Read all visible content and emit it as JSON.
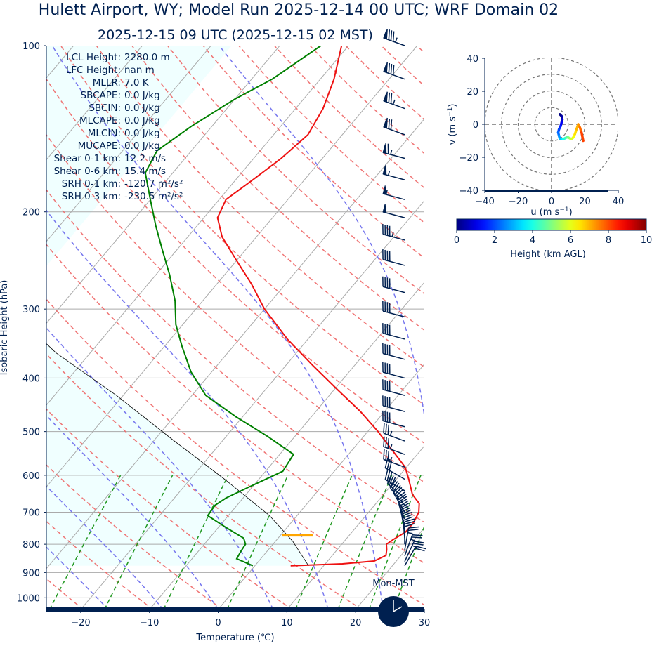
{
  "title": "Hulett Airport, WY; Model Run 2025-12-14 00 UTC; WRF Domain 02",
  "subtitle": "2025-12-15 09 UTC  (2025-12-15 02 MST)",
  "indices": [
    {
      "label": "LCL Height:",
      "value": "2280.0 m"
    },
    {
      "label": "LFC Height:",
      "value": "nan m"
    },
    {
      "label": "MLLR:",
      "value": "7.0 K"
    },
    {
      "label": "SBCAPE:",
      "value": "0.0 J/kg"
    },
    {
      "label": "SBCIN:",
      "value": "0.0 J/kg"
    },
    {
      "label": "MLCAPE:",
      "value": "0.0 J/kg"
    },
    {
      "label": "MLCIN:",
      "value": "0.0 J/kg"
    },
    {
      "label": "MUCAPE:",
      "value": "0.0 J/kg"
    },
    {
      "label": "Shear 0-1 km:",
      "value": "12.2 m/s"
    },
    {
      "label": "Shear 0-6 km:",
      "value": "15.4 m/s"
    },
    {
      "label": "SRH 0-1 km:",
      "value": "-120.7 m²/s²"
    },
    {
      "label": "SRH 0-3 km:",
      "value": "-230.5 m²/s²"
    }
  ],
  "clock_label": "Mon-MST",
  "colors": {
    "temperature": "#ee1111",
    "dewpoint": "#008000",
    "parcel": "#000000",
    "cape_fill": "#f0ffff",
    "dry_adiabat": "#ee6666",
    "moist_adiabat": "#7777ee",
    "mixing_ratio": "#229922",
    "isotherm": "#aaaaaa",
    "barb": "#002050",
    "lcl_marker": "#ffa500",
    "title": "#002050"
  },
  "chart_data": [
    {
      "type": "skew-t",
      "xlabel": "Temperature (℃)",
      "ylabel": "Isobaric Height (hPa)",
      "xlim": [
        -25,
        30
      ],
      "ylim": [
        1050,
        100
      ],
      "y_scale": "log",
      "x_ticks": [
        -20,
        -10,
        0,
        10,
        20,
        30
      ],
      "y_ticks": [
        100,
        200,
        300,
        400,
        500,
        600,
        700,
        800,
        900,
        1000
      ],
      "grid": true,
      "series": [
        {
          "name": "temperature",
          "points": [
            [
              5.2,
              875
            ],
            [
              12.5,
              868
            ],
            [
              16.8,
              858
            ],
            [
              17.8,
              838
            ],
            [
              17.2,
              818
            ],
            [
              16.5,
              800
            ],
            [
              16.9,
              785
            ],
            [
              17.8,
              760
            ],
            [
              17.8,
              730
            ],
            [
              17.3,
              700
            ],
            [
              16.3,
              675
            ],
            [
              14.2,
              650
            ],
            [
              11.8,
              610
            ],
            [
              9.8,
              580
            ],
            [
              5.8,
              540
            ],
            [
              1.5,
              500
            ],
            [
              -3.5,
              460
            ],
            [
              -9.5,
              420
            ],
            [
              -16,
              380
            ],
            [
              -23,
              340
            ],
            [
              -30,
              300
            ],
            [
              -35,
              270
            ],
            [
              -40,
              245
            ],
            [
              -45,
              222
            ],
            [
              -48,
              205
            ],
            [
              -49,
              190
            ],
            [
              -47.5,
              175
            ],
            [
              -46,
              160
            ],
            [
              -45,
              145
            ],
            [
              -46,
              130
            ],
            [
              -48,
              115
            ],
            [
              -51,
              100
            ]
          ]
        },
        {
          "name": "dewpoint",
          "points": [
            [
              -0.3,
              875
            ],
            [
              -3.5,
              850
            ],
            [
              -3.8,
              825
            ],
            [
              -4,
              800
            ],
            [
              -5,
              780
            ],
            [
              -9,
              745
            ],
            [
              -13,
              710
            ],
            [
              -13.2,
              680
            ],
            [
              -12.5,
              660
            ],
            [
              -10.5,
              630
            ],
            [
              -7.5,
              590
            ],
            [
              -8,
              550
            ],
            [
              -14,
              510
            ],
            [
              -21,
              470
            ],
            [
              -28,
              430
            ],
            [
              -33,
              390
            ],
            [
              -37.5,
              350
            ],
            [
              -41,
              320
            ],
            [
              -44,
              290
            ],
            [
              -48,
              260
            ],
            [
              -52,
              235
            ],
            [
              -56,
              212
            ],
            [
              -60,
              190
            ],
            [
              -64,
              170
            ],
            [
              -65,
              155
            ],
            [
              -63,
              140
            ],
            [
              -60,
              125
            ],
            [
              -57,
              115
            ],
            [
              -54,
              100
            ]
          ]
        },
        {
          "name": "parcel",
          "points": [
            [
              7.8,
              875
            ],
            [
              2.5,
              790
            ],
            [
              -4,
              710
            ],
            [
              -15,
              610
            ],
            [
              -27,
              520
            ],
            [
              -41,
              430
            ],
            [
              -55,
              360
            ],
            [
              -67,
              300
            ]
          ]
        }
      ],
      "lcl": {
        "pressure": 770,
        "temperature": 2.5
      },
      "wind_barbs": {
        "pressures": [
          100,
          115,
          130,
          145,
          160,
          175,
          190,
          205,
          225,
          250,
          280,
          310,
          340,
          370,
          400,
          430,
          460,
          490,
          520,
          550,
          580,
          610,
          640,
          660,
          680,
          700,
          720,
          740,
          760,
          780,
          800,
          820,
          840,
          860,
          875
        ],
        "speeds_kt": [
          95,
          90,
          85,
          80,
          75,
          65,
          55,
          50,
          45,
          40,
          40,
          40,
          40,
          40,
          40,
          40,
          40,
          40,
          35,
          35,
          35,
          30,
          30,
          30,
          30,
          30,
          30,
          30,
          30,
          30,
          30,
          25,
          25,
          25,
          20
        ],
        "directions_deg": [
          290,
          290,
          290,
          290,
          285,
          285,
          285,
          285,
          285,
          285,
          285,
          285,
          285,
          285,
          285,
          285,
          285,
          285,
          290,
          290,
          290,
          300,
          300,
          310,
          320,
          330,
          340,
          345,
          350,
          355,
          360,
          10,
          20,
          25,
          30
        ]
      }
    },
    {
      "type": "hodograph",
      "xlabel": "u (m s$^{-1}$)",
      "ylabel": "v (m s$^{-1}$)",
      "xlim": [
        -40,
        40
      ],
      "ylim": [
        -40,
        40
      ],
      "x_ticks": [
        -40,
        -20,
        0,
        20,
        40
      ],
      "y_ticks": [
        -40,
        -20,
        0,
        20,
        40
      ],
      "rings": [
        10,
        20,
        30,
        40
      ],
      "height_km": [
        0,
        0.4,
        0.8,
        1.2,
        1.6,
        2,
        2.5,
        3,
        3.5,
        4,
        4.5,
        5,
        5.5,
        6,
        7,
        8,
        9,
        10
      ],
      "u": [
        19,
        18,
        17,
        16,
        14.5,
        13,
        12.5,
        13,
        14.5,
        16,
        17.5,
        18.5,
        19.5,
        19,
        18,
        17,
        17.5,
        18
      ],
      "v": [
        -10,
        -9,
        -7.5,
        -6,
        -4,
        -2,
        0,
        1.5,
        -1,
        -3,
        -4,
        -3,
        -1,
        0,
        -1,
        -3,
        -6,
        -9
      ],
      "trace_u": [
        5,
        6,
        6.5,
        6,
        5.5,
        4.5,
        4,
        4.5,
        5,
        6,
        7,
        8,
        9,
        10,
        11,
        12,
        13,
        14,
        15,
        16,
        17,
        18,
        19
      ],
      "trace_v": [
        6,
        5,
        3,
        1,
        -1,
        -3,
        -5,
        -7,
        -9,
        -9,
        -9,
        -8.5,
        -8,
        -8,
        -8.5,
        -9,
        -8,
        -6,
        -3,
        0,
        -2,
        -5,
        -10
      ]
    },
    {
      "type": "colorbar",
      "label": "Height (km AGL)",
      "range": [
        0,
        10
      ],
      "ticks": [
        0,
        2,
        4,
        6,
        8,
        10
      ]
    }
  ]
}
